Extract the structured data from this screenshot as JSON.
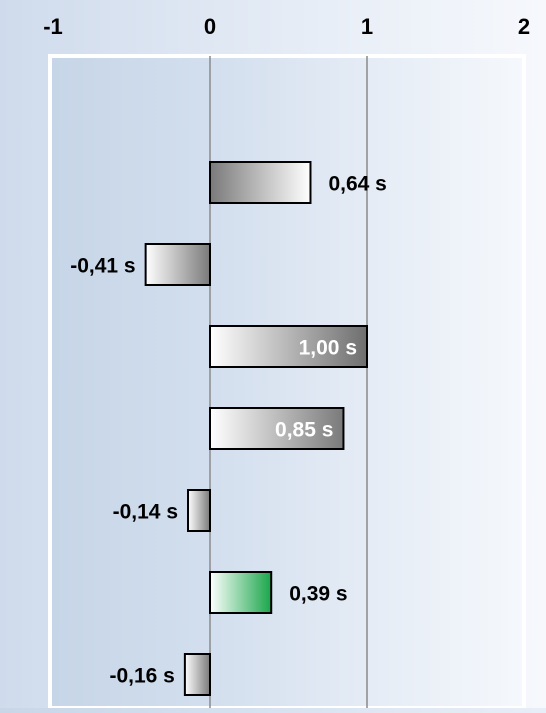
{
  "chart_data": {
    "type": "bar",
    "orientation": "horizontal",
    "title": "",
    "xlabel": "",
    "ylabel": "",
    "xlim": [
      -1,
      2
    ],
    "x_ticks": [
      -1,
      0,
      1,
      2
    ],
    "x_tick_labels": [
      "-1",
      "0",
      "1",
      "2"
    ],
    "grid": "vertical lines at 0 and 1",
    "values": [
      0.64,
      -0.41,
      1.0,
      0.85,
      -0.14,
      0.39,
      -0.16
    ],
    "labels": [
      "0,64 s",
      "-0,41 s",
      "1,00 s",
      "0,85 s",
      "-0,14 s",
      "0,39 s",
      "-0,16 s"
    ],
    "bar_colors": [
      "#7a7a7a",
      "#7a7a7a",
      "#6e6e6e",
      "#7a7a7a",
      "#7a7a7a",
      "#1aa64a",
      "#7a7a7a"
    ],
    "colors": {
      "bar_dark": "#6e6e6e",
      "bar_highlight": "#1aa64a",
      "bar_light": "#ffffff",
      "border": "#000000",
      "plot_bg_left": "#c9d7e8",
      "plot_bg_right": "#f3f6fb",
      "gridline": "#8a8a8a"
    }
  }
}
